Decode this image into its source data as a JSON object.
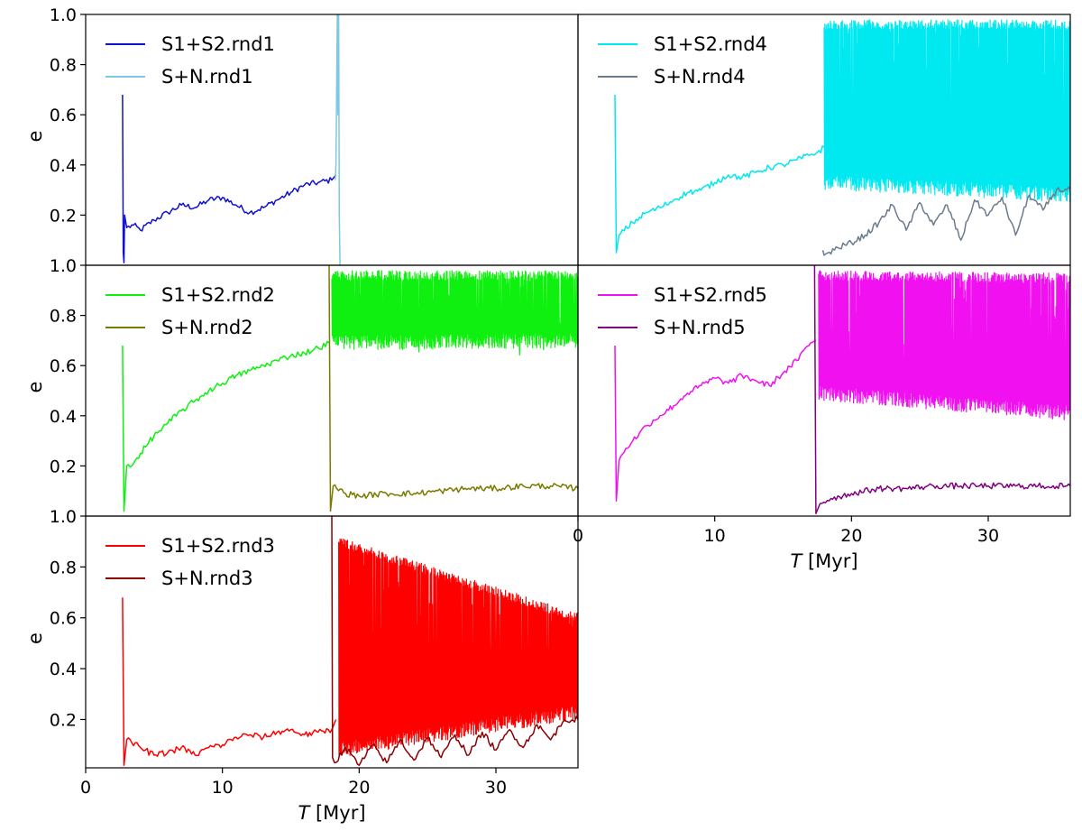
{
  "chart_data": [
    {
      "type": "line",
      "xlim": [
        0,
        36
      ],
      "ylim": [
        0.0,
        1.0
      ],
      "xlabel": "",
      "ylabel": "e",
      "xticks": [],
      "yticks": [
        0.2,
        0.4,
        0.6,
        0.8,
        1.0
      ],
      "legend": "top-left",
      "grid": false,
      "series": [
        {
          "name": "S1+S2.rnd1",
          "color": "#1010d0",
          "x": [
            2.7,
            2.75,
            2.8,
            2.85,
            3.0,
            3.5,
            4.0,
            5.0,
            6.0,
            7.0,
            8.0,
            9.0,
            10.0,
            11.0,
            12.0,
            13.0,
            14.0,
            15.0,
            16.0,
            17.0,
            18.0,
            18.3
          ],
          "y": [
            0.68,
            0.05,
            0.01,
            0.2,
            0.15,
            0.16,
            0.14,
            0.18,
            0.21,
            0.24,
            0.23,
            0.26,
            0.27,
            0.24,
            0.21,
            0.23,
            0.26,
            0.29,
            0.32,
            0.33,
            0.34,
            0.36
          ]
        },
        {
          "name": "S+N.rnd1",
          "color": "#7ec8e3",
          "x": [
            18.25,
            18.3,
            18.4,
            18.45,
            18.5,
            18.55,
            18.6
          ],
          "y": [
            0.34,
            0.4,
            1.0,
            0.6,
            1.0,
            0.2,
            0.0
          ]
        }
      ]
    },
    {
      "type": "line",
      "xlim": [
        0,
        36
      ],
      "ylim": [
        0.0,
        1.0
      ],
      "xlabel": "",
      "ylabel": "",
      "xticks": [],
      "yticks": [],
      "legend": "top-left",
      "grid": false,
      "series": [
        {
          "name": "S1+S2.rnd4",
          "color": "#00e8f0",
          "x": [
            2.7,
            2.8,
            3.0,
            4.0,
            5.0,
            6.0,
            7.0,
            8.0,
            9.0,
            10.0,
            11.0,
            12.0,
            13.0,
            14.0,
            15.0,
            16.0,
            17.0,
            17.5,
            18.0
          ],
          "y": [
            0.68,
            0.05,
            0.12,
            0.17,
            0.21,
            0.23,
            0.26,
            0.29,
            0.3,
            0.33,
            0.36,
            0.35,
            0.37,
            0.39,
            0.4,
            0.42,
            0.44,
            0.45,
            0.47
          ],
          "oscillation": {
            "from": 18.0,
            "to": 36.0,
            "low": [
              0.3,
              0.25
            ],
            "high": [
              0.98,
              0.98
            ]
          }
        },
        {
          "name": "S+N.rnd4",
          "color": "#6b7b8c",
          "x": [
            17.9,
            18.0,
            19.0,
            20.0,
            21.0,
            22.0,
            23.0,
            24.0,
            25.0,
            26.0,
            27.0,
            28.0,
            29.0,
            30.0,
            31.0,
            32.0,
            33.0,
            34.0,
            35.0,
            36.0
          ],
          "y": [
            0.06,
            0.04,
            0.07,
            0.09,
            0.12,
            0.17,
            0.24,
            0.14,
            0.25,
            0.16,
            0.24,
            0.1,
            0.26,
            0.2,
            0.27,
            0.12,
            0.28,
            0.22,
            0.3,
            0.3
          ]
        }
      ]
    },
    {
      "type": "line",
      "xlim": [
        0,
        36
      ],
      "ylim": [
        0.0,
        1.0
      ],
      "xlabel": "",
      "ylabel": "e",
      "xticks": [],
      "yticks": [
        0.2,
        0.4,
        0.6,
        0.8,
        1.0
      ],
      "legend": "top-left",
      "grid": false,
      "series": [
        {
          "name": "S1+S2.rnd2",
          "color": "#10f010",
          "x": [
            2.7,
            2.8,
            3.0,
            3.5,
            4.0,
            5.0,
            6.0,
            7.0,
            8.0,
            9.0,
            10.0,
            11.0,
            12.0,
            13.0,
            14.0,
            15.0,
            16.0,
            17.0,
            17.8
          ],
          "y": [
            0.68,
            0.02,
            0.2,
            0.21,
            0.25,
            0.32,
            0.37,
            0.42,
            0.46,
            0.5,
            0.53,
            0.56,
            0.58,
            0.6,
            0.62,
            0.64,
            0.65,
            0.67,
            0.69
          ],
          "oscillation": {
            "from": 18.0,
            "to": 36.0,
            "low": [
              0.66,
              0.67
            ],
            "high": [
              0.98,
              0.98
            ]
          }
        },
        {
          "name": "S+N.rnd2",
          "color": "#7a7a00",
          "x": [
            17.8,
            17.9,
            18.1,
            19.0,
            20.0,
            22.0,
            24.0,
            26.0,
            28.0,
            30.0,
            32.0,
            34.0,
            36.0
          ],
          "y": [
            1.0,
            0.02,
            0.12,
            0.09,
            0.08,
            0.09,
            0.09,
            0.1,
            0.11,
            0.11,
            0.12,
            0.12,
            0.11
          ]
        }
      ]
    },
    {
      "type": "line",
      "xlim": [
        0,
        36
      ],
      "ylim": [
        0.0,
        1.0
      ],
      "xlabel": "T [Myr]",
      "ylabel": "",
      "xticks": [
        0,
        10,
        20,
        30
      ],
      "yticks": [],
      "legend": "top-left",
      "grid": false,
      "series": [
        {
          "name": "S1+S2.rnd5",
          "color": "#f010f0",
          "x": [
            2.7,
            2.8,
            3.0,
            3.5,
            4.0,
            5.0,
            6.0,
            7.0,
            8.0,
            9.0,
            10.0,
            11.0,
            12.0,
            13.0,
            14.0,
            15.0,
            16.0,
            17.0,
            17.4
          ],
          "y": [
            0.68,
            0.06,
            0.22,
            0.27,
            0.3,
            0.36,
            0.4,
            0.44,
            0.49,
            0.52,
            0.55,
            0.53,
            0.56,
            0.54,
            0.52,
            0.57,
            0.62,
            0.69,
            0.7
          ],
          "oscillation": {
            "from": 17.6,
            "to": 36.0,
            "low": [
              0.46,
              0.38
            ],
            "high": [
              0.98,
              0.97
            ]
          }
        },
        {
          "name": "S+N.rnd5",
          "color": "#800080",
          "x": [
            17.3,
            17.4,
            17.7,
            18.5,
            20.0,
            22.0,
            24.0,
            26.0,
            28.0,
            30.0,
            32.0,
            34.0,
            36.0
          ],
          "y": [
            1.0,
            0.01,
            0.05,
            0.07,
            0.09,
            0.11,
            0.11,
            0.12,
            0.12,
            0.12,
            0.12,
            0.12,
            0.12
          ]
        }
      ]
    },
    {
      "type": "line",
      "xlim": [
        0,
        36
      ],
      "ylim": [
        0.0,
        1.0
      ],
      "xlabel": "T [Myr]",
      "ylabel": "e",
      "xticks": [
        0,
        10,
        20,
        30
      ],
      "yticks": [
        0.2,
        0.4,
        0.6,
        0.8,
        1.0
      ],
      "legend": "top-left",
      "grid": false,
      "series": [
        {
          "name": "S1+S2.rnd3",
          "color": "#ff0000",
          "x": [
            2.7,
            2.8,
            3.0,
            4.0,
            5.0,
            6.0,
            7.0,
            8.0,
            9.0,
            10.0,
            11.0,
            12.0,
            13.0,
            14.0,
            15.0,
            16.0,
            17.0,
            18.0,
            18.3
          ],
          "y": [
            0.68,
            0.02,
            0.12,
            0.09,
            0.06,
            0.07,
            0.09,
            0.06,
            0.09,
            0.1,
            0.13,
            0.14,
            0.13,
            0.15,
            0.16,
            0.14,
            0.15,
            0.16,
            0.2
          ],
          "oscillation": {
            "from": 18.5,
            "to": 36.0,
            "low": [
              0.05,
              0.2
            ],
            "high": [
              0.92,
              0.62
            ]
          }
        },
        {
          "name": "S+N.rnd3",
          "color": "#8b0000",
          "x": [
            18.0,
            18.05,
            18.2,
            19.0,
            20.0,
            21.0,
            22.0,
            23.0,
            24.0,
            25.0,
            26.0,
            27.0,
            28.0,
            29.0,
            30.0,
            31.0,
            32.0,
            33.0,
            34.0,
            35.0,
            36.0
          ],
          "y": [
            1.0,
            0.05,
            0.03,
            0.09,
            0.02,
            0.1,
            0.03,
            0.12,
            0.04,
            0.13,
            0.05,
            0.14,
            0.06,
            0.15,
            0.08,
            0.16,
            0.09,
            0.18,
            0.12,
            0.2,
            0.2
          ]
        }
      ]
    }
  ]
}
